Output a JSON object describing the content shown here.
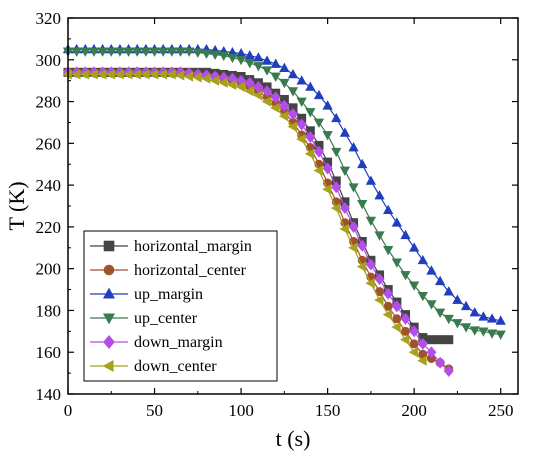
{
  "chart_data": {
    "type": "line",
    "xlabel": "t (s)",
    "ylabel": "T (K)",
    "xlim": [
      0,
      260
    ],
    "ylim": [
      140,
      320
    ],
    "x_ticks": [
      "0",
      "50",
      "100",
      "150",
      "200",
      "250"
    ],
    "y_ticks": [
      "140",
      "160",
      "180",
      "200",
      "220",
      "240",
      "260",
      "280",
      "300",
      "320"
    ],
    "legend_position": "bottom-left",
    "series": [
      {
        "name": "horizontal_margin",
        "color": "#444444",
        "marker": "square",
        "x": [
          0,
          5,
          10,
          15,
          20,
          25,
          30,
          35,
          40,
          45,
          50,
          55,
          60,
          65,
          70,
          75,
          80,
          85,
          90,
          95,
          100,
          105,
          110,
          115,
          120,
          125,
          130,
          135,
          140,
          145,
          150,
          155,
          160,
          165,
          170,
          175,
          180,
          185,
          190,
          195,
          200,
          205,
          210,
          215,
          220
        ],
        "y": [
          294,
          294,
          294,
          294,
          294,
          294,
          294,
          294,
          294,
          294,
          294,
          294,
          294,
          294,
          294,
          294,
          294,
          293.5,
          293,
          292.5,
          292,
          290.5,
          289,
          287,
          284,
          281,
          277,
          272,
          266,
          259,
          251,
          242,
          232,
          222,
          213,
          204,
          197,
          190,
          184,
          178,
          172,
          167,
          166,
          166,
          166
        ]
      },
      {
        "name": "horizontal_center",
        "color": "#a0522d",
        "marker": "circle",
        "x": [
          0,
          5,
          10,
          15,
          20,
          25,
          30,
          35,
          40,
          45,
          50,
          55,
          60,
          65,
          70,
          75,
          80,
          85,
          90,
          95,
          100,
          105,
          110,
          115,
          120,
          125,
          130,
          135,
          140,
          145,
          150,
          155,
          160,
          165,
          170,
          175,
          180,
          185,
          190,
          195,
          200,
          205,
          210,
          215,
          220
        ],
        "y": [
          294,
          294,
          294,
          294,
          294,
          294,
          294,
          294,
          294,
          294,
          294,
          294,
          294,
          294,
          293.5,
          293,
          292.5,
          292,
          291,
          290,
          289,
          287,
          285,
          282,
          279,
          275,
          270,
          264,
          258,
          250,
          241,
          232,
          222,
          213,
          204,
          196,
          189,
          182,
          176,
          170,
          164,
          159,
          157,
          155,
          152
        ]
      },
      {
        "name": "up_margin",
        "color": "#1f3fbf",
        "marker": "triangle-up",
        "x": [
          0,
          5,
          10,
          15,
          20,
          25,
          30,
          35,
          40,
          45,
          50,
          55,
          60,
          65,
          70,
          75,
          80,
          85,
          90,
          95,
          100,
          105,
          110,
          115,
          120,
          125,
          130,
          135,
          140,
          145,
          150,
          155,
          160,
          165,
          170,
          175,
          180,
          185,
          190,
          195,
          200,
          205,
          210,
          215,
          220,
          225,
          230,
          235,
          240,
          245,
          250
        ],
        "y": [
          305,
          305,
          305,
          305,
          305,
          305,
          305,
          305,
          305,
          305,
          305,
          305,
          305,
          305,
          305,
          305,
          305,
          304.5,
          304,
          303.5,
          303,
          302,
          301,
          299.5,
          298,
          296,
          293,
          290,
          287,
          283,
          278,
          272,
          265,
          258,
          250,
          242,
          235,
          228,
          222,
          216,
          210,
          204,
          199,
          194,
          189,
          185,
          182,
          179,
          177,
          176,
          175
        ]
      },
      {
        "name": "up_center",
        "color": "#3a7a4f",
        "marker": "triangle-down",
        "x": [
          0,
          5,
          10,
          15,
          20,
          25,
          30,
          35,
          40,
          45,
          50,
          55,
          60,
          65,
          70,
          75,
          80,
          85,
          90,
          95,
          100,
          105,
          110,
          115,
          120,
          125,
          130,
          135,
          140,
          145,
          150,
          155,
          160,
          165,
          170,
          175,
          180,
          185,
          190,
          195,
          200,
          205,
          210,
          215,
          220,
          225,
          230,
          235,
          240,
          245,
          250
        ],
        "y": [
          304,
          304,
          304,
          304,
          304,
          304,
          304,
          304,
          304,
          304,
          304,
          304,
          304,
          304,
          304,
          303.5,
          303,
          302.5,
          302,
          301,
          300,
          298.5,
          297,
          295,
          292,
          289,
          285,
          280,
          275,
          270,
          264,
          256,
          247,
          239,
          231,
          223,
          216,
          209,
          203,
          197,
          192,
          187,
          183,
          179,
          176,
          174,
          172,
          170.5,
          170,
          169,
          168.5
        ]
      },
      {
        "name": "down_margin",
        "color": "#b44ee8",
        "marker": "diamond",
        "x": [
          0,
          5,
          10,
          15,
          20,
          25,
          30,
          35,
          40,
          45,
          50,
          55,
          60,
          65,
          70,
          75,
          80,
          85,
          90,
          95,
          100,
          105,
          110,
          115,
          120,
          125,
          130,
          135,
          140,
          145,
          150,
          155,
          160,
          165,
          170,
          175,
          180,
          185,
          190,
          195,
          200,
          205,
          210,
          215,
          220
        ],
        "y": [
          294,
          294,
          294,
          294,
          294,
          294,
          294,
          294,
          294,
          294,
          294,
          294,
          294,
          294,
          293.5,
          293,
          292.5,
          292,
          291.5,
          291,
          290,
          289,
          287,
          285,
          282,
          278,
          274,
          269,
          263,
          256,
          248,
          239,
          229,
          220,
          211,
          202,
          195,
          188,
          182,
          176,
          170,
          164,
          160,
          155,
          151
        ]
      },
      {
        "name": "down_center",
        "color": "#a8a21a",
        "marker": "triangle-left",
        "x": [
          0,
          5,
          10,
          15,
          20,
          25,
          30,
          35,
          40,
          45,
          50,
          55,
          60,
          65,
          70,
          75,
          80,
          85,
          90,
          95,
          100,
          105,
          110,
          115,
          120,
          125,
          130,
          135,
          140,
          145,
          150,
          155,
          160,
          165,
          170,
          175,
          180,
          185,
          190,
          195,
          200,
          205
        ],
        "y": [
          293,
          293,
          293,
          293,
          293,
          293,
          293,
          293,
          293,
          293,
          293,
          293,
          293,
          292.5,
          292,
          291.5,
          291,
          290,
          289,
          288,
          287,
          285,
          283,
          280,
          277,
          273,
          268,
          262,
          255,
          247,
          238,
          229,
          219,
          210,
          201,
          193,
          185,
          178,
          172,
          166,
          160,
          156
        ]
      }
    ]
  }
}
